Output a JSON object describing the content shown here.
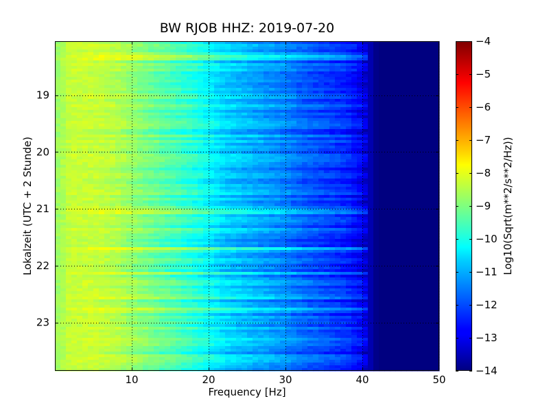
{
  "chart_data": {
    "type": "heatmap",
    "title": "BW RJOB HHZ: 2019-07-20",
    "xlabel": "Frequency [Hz]",
    "ylabel": "Lokalzeit (UTC + 2 Stunde)",
    "xlim": [
      0,
      50
    ],
    "ylim": [
      18.05,
      23.85
    ],
    "x_ticks": [
      10,
      20,
      30,
      40,
      50
    ],
    "x_tick_labels": [
      "10",
      "20",
      "30",
      "40",
      "50"
    ],
    "y_ticks": [
      19,
      20,
      21,
      22,
      23
    ],
    "y_tick_labels": [
      "19",
      "20",
      "21",
      "22",
      "23"
    ],
    "y_inverted": true,
    "grid": true,
    "colormap": "jet",
    "colorbar": {
      "label": "Log10(Sqrt(m**2/s**2/Hz))",
      "range": [
        -14,
        -4
      ],
      "ticks": [
        -4,
        -5,
        -6,
        -7,
        -8,
        -9,
        -10,
        -11,
        -12,
        -13,
        -14
      ],
      "tick_labels": [
        "−4",
        "−5",
        "−6",
        "−7",
        "−8",
        "−9",
        "−10",
        "−11",
        "−12",
        "−13",
        "−14"
      ]
    },
    "frequency_profile": {
      "frequency_hz": [
        0,
        2,
        5,
        8,
        10,
        12,
        15,
        18,
        20,
        22,
        25,
        28,
        30,
        32,
        34,
        36,
        38,
        40,
        41,
        42,
        45,
        50
      ],
      "level": [
        -8.8,
        -8.3,
        -8.3,
        -8.5,
        -8.8,
        -9.1,
        -9.5,
        -9.9,
        -10.3,
        -10.7,
        -11.0,
        -11.3,
        -11.5,
        -11.8,
        -12.0,
        -12.2,
        -12.4,
        -12.9,
        -13.5,
        -14.0,
        -14.0,
        -14.0
      ]
    }
  }
}
